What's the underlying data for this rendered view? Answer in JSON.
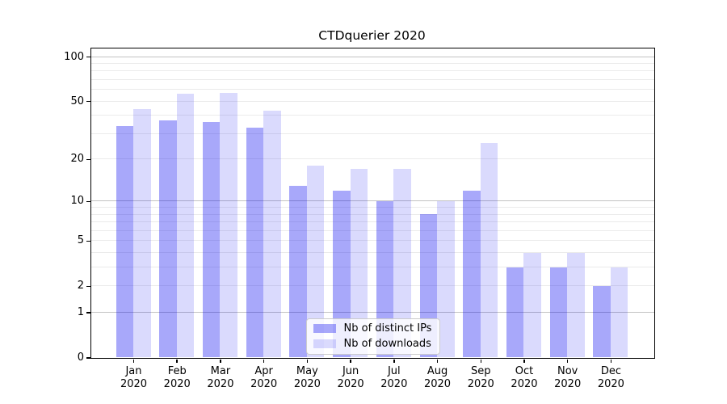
{
  "title": "CTDquerier 2020",
  "chart_data": {
    "type": "bar",
    "title": "CTDquerier 2020",
    "categories": [
      "Jan 2020",
      "Feb 2020",
      "Mar 2020",
      "Apr 2020",
      "May 2020",
      "Jun 2020",
      "Jul 2020",
      "Aug 2020",
      "Sep 2020",
      "Oct 2020",
      "Nov 2020",
      "Dec 2020"
    ],
    "series": [
      {
        "name": "Nb of distinct IPs",
        "color": "#A8A8FA",
        "fill_rgba": "rgba(0,0,240,0.34)",
        "values": [
          34,
          37,
          36,
          33,
          13,
          12,
          10,
          8,
          12,
          3,
          3,
          2
        ]
      },
      {
        "name": "Nb of downloads",
        "color": "#DADAFC",
        "fill_rgba": "rgba(0,0,240,0.145)",
        "values": [
          44,
          56,
          57,
          43,
          18,
          17,
          17,
          10,
          26,
          4,
          4,
          3
        ]
      }
    ],
    "xlabel": "",
    "ylabel": "",
    "yscale": "log1p",
    "ylim": [
      0,
      110
    ],
    "ytick_values": [
      0,
      1,
      2,
      5,
      10,
      20,
      50,
      100
    ],
    "grid": "horizontal",
    "grid_major_values": [
      1,
      10,
      100
    ],
    "grid_minor_values": [
      2,
      3,
      4,
      5,
      6,
      7,
      8,
      9,
      20,
      30,
      40,
      50,
      60,
      70,
      80,
      90
    ],
    "grid_major_color": "#c3c3c3",
    "grid_minor_color": "#ebebeb",
    "legend_position": "lower center"
  },
  "legend": {
    "items": [
      {
        "label": "Nb of distinct IPs"
      },
      {
        "label": "Nb of downloads"
      }
    ]
  }
}
